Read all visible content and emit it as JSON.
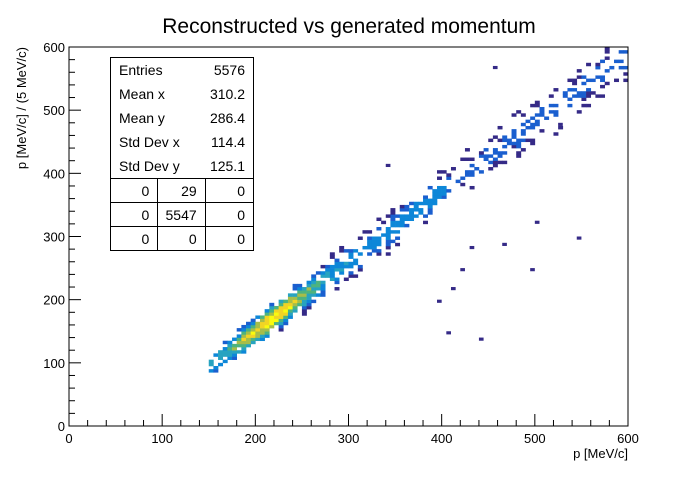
{
  "chart_data": {
    "type": "heatmap",
    "title": "Reconstructed vs generated momentum",
    "xlabel": "p [MeV/c]",
    "ylabel": "p [MeV/c] / (5 MeV/c)",
    "xlim": [
      0,
      600
    ],
    "ylim": [
      0,
      600
    ],
    "xticks": [
      "0",
      "100",
      "200",
      "300",
      "400",
      "500",
      "600"
    ],
    "yticks": [
      "0",
      "100",
      "200",
      "300",
      "400",
      "500",
      "600"
    ],
    "bin_width": 5,
    "colormap": [
      "#352a87",
      "#1a5fcf",
      "#0d87d8",
      "#27a3c0",
      "#4db37e",
      "#a6bd4a",
      "#f2d424",
      "#f9fb0e"
    ],
    "stats": {
      "rows": [
        {
          "label": "Entries",
          "value": "5576"
        },
        {
          "label": "Mean x",
          "value": "310.2"
        },
        {
          "label": "Mean y",
          "value": "286.4"
        },
        {
          "label": "Std Dev x",
          "value": "114.4"
        },
        {
          "label": "Std Dev y",
          "value": "125.1"
        }
      ],
      "quadrants": [
        [
          "0",
          "29",
          "0"
        ],
        [
          "0",
          "5547",
          "0"
        ],
        [
          "0",
          "0",
          "0"
        ]
      ]
    }
  }
}
